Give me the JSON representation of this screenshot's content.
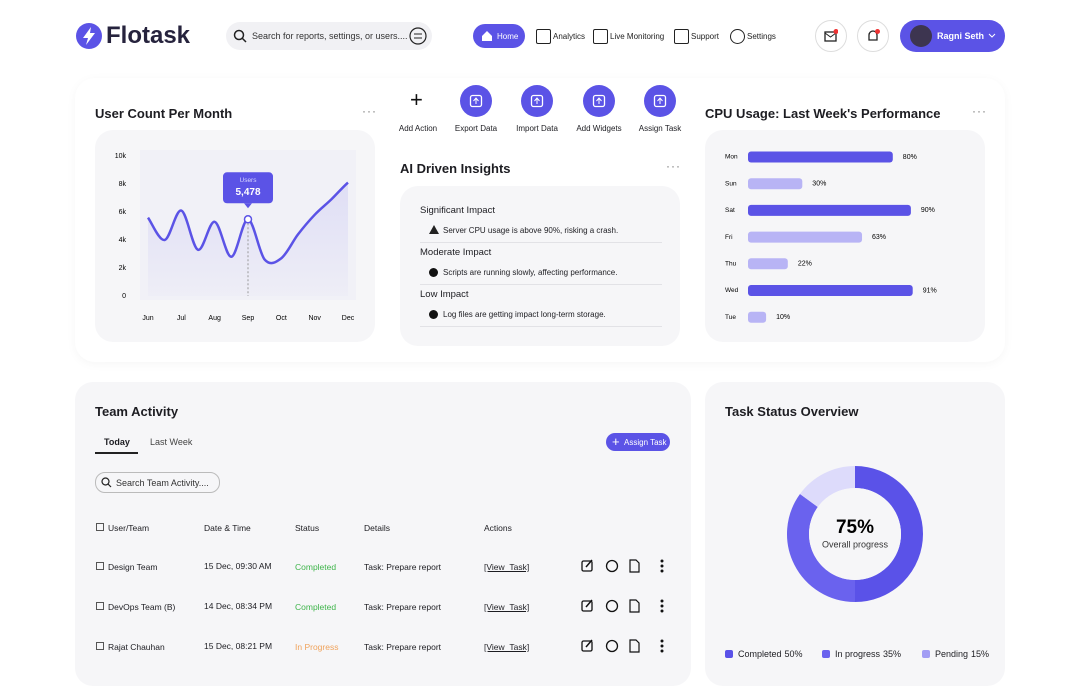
{
  "header": {
    "brand": "Flotask",
    "search_placeholder": "Search for reports, settings, or users....",
    "nav": [
      "Home",
      "Analytics",
      "Live Monitoring",
      "Support",
      "Settings"
    ],
    "user": "Ragni Seth"
  },
  "user_count": {
    "type": "line",
    "title": "User Count Per Month",
    "categories": [
      "Jun",
      null,
      "Jul",
      null,
      "Aug",
      null,
      "Sep",
      null,
      "Oct",
      null,
      "Nov",
      null,
      "Dec"
    ],
    "values": [
      5600,
      4000,
      6100,
      3300,
      5300,
      2800,
      5478,
      2600,
      2700,
      4400,
      5800,
      6900,
      8100
    ],
    "color": "#5b53e6",
    "ylim": [
      0,
      10000
    ],
    "yticks": [
      0,
      {
        "value": 2000,
        "label": "2k"
      },
      {
        "value": 4000,
        "label": "4k"
      },
      {
        "value": 6000,
        "label": "6k"
      },
      {
        "value": 8000,
        "label": "8k"
      },
      {
        "value": 10000,
        "label": "10k"
      }
    ],
    "tooltip": {
      "title": "Users",
      "text": "5,478"
    }
  },
  "actions": [
    "Add Action",
    "Export Data",
    "Import Data",
    "Add Widgets",
    "Assign Task"
  ],
  "insights": {
    "title": "AI Driven Insights",
    "items": [
      {
        "heading": "Significant Impact",
        "text": "Server CPU usage is above 90%, risking a crash."
      },
      {
        "heading": "Moderate Impact",
        "text": "Scripts are running slowly, affecting performance."
      },
      {
        "heading": "Low Impact",
        "text": "Log files are getting  impact long-term storage."
      }
    ]
  },
  "cpu_usage": {
    "type": "bar",
    "orientation": "horizontal",
    "title": "CPU Usage: Last Week's Performance",
    "categories": [
      "Mon",
      "Sun",
      "Sat",
      "Fri",
      "Thu",
      "Wed",
      "Tue"
    ],
    "values": [
      80,
      30,
      90,
      63,
      22,
      91,
      10
    ],
    "value_labels": [
      "80%",
      "30%",
      "90%",
      "63%",
      "22%",
      "91%",
      "10%"
    ],
    "colors": [
      "#5b53e6",
      "#b8b4f5",
      "#5b53e6",
      "#b8b4f5",
      "#b8b4f5",
      "#5b53e6",
      "#b8b4f5"
    ],
    "xlim": [
      0,
      100
    ]
  },
  "team_activity": {
    "title": "Team Activity",
    "tabs": [
      "Today",
      "Last Week"
    ],
    "button": "Assign Task",
    "search_placeholder": "Search Team Activity....",
    "columns": [
      "User/Team",
      "Date & Time",
      "Status",
      "Details",
      "Actions"
    ],
    "rows": [
      {
        "team": "Design Team",
        "date": "15 Dec, 09:30 AM",
        "status": "Completed",
        "status_color": "#3fb54b",
        "details": "Task: Prepare report",
        "action": "[View_Task]"
      },
      {
        "team": "DevOps Team (B)",
        "date": "14 Dec, 08:34 PM",
        "status": "Completed",
        "status_color": "#3fb54b",
        "details": "Task: Prepare report",
        "action": "[View_Task]"
      },
      {
        "team": "Rajat Chauhan",
        "date": "15 Dec, 08:21 PM",
        "status": "In Progress",
        "status_color": "#f0a35c",
        "details": "Task: Prepare report",
        "action": "[View_Task]"
      }
    ]
  },
  "task_status": {
    "type": "pie",
    "title": "Task Status Overview",
    "center_text": "75%",
    "center_label": "Overall progress",
    "categories": [
      "Completed",
      "In progress",
      "Pending"
    ],
    "values": [
      50,
      35,
      15
    ],
    "value_labels": [
      "50%",
      "35%",
      "15%"
    ],
    "colors": [
      "#5a52e8",
      "#6a62ee",
      "#dddbfb"
    ],
    "legend_colors": [
      "#5a52e8",
      "#6a62ee",
      "#a29df4"
    ]
  }
}
